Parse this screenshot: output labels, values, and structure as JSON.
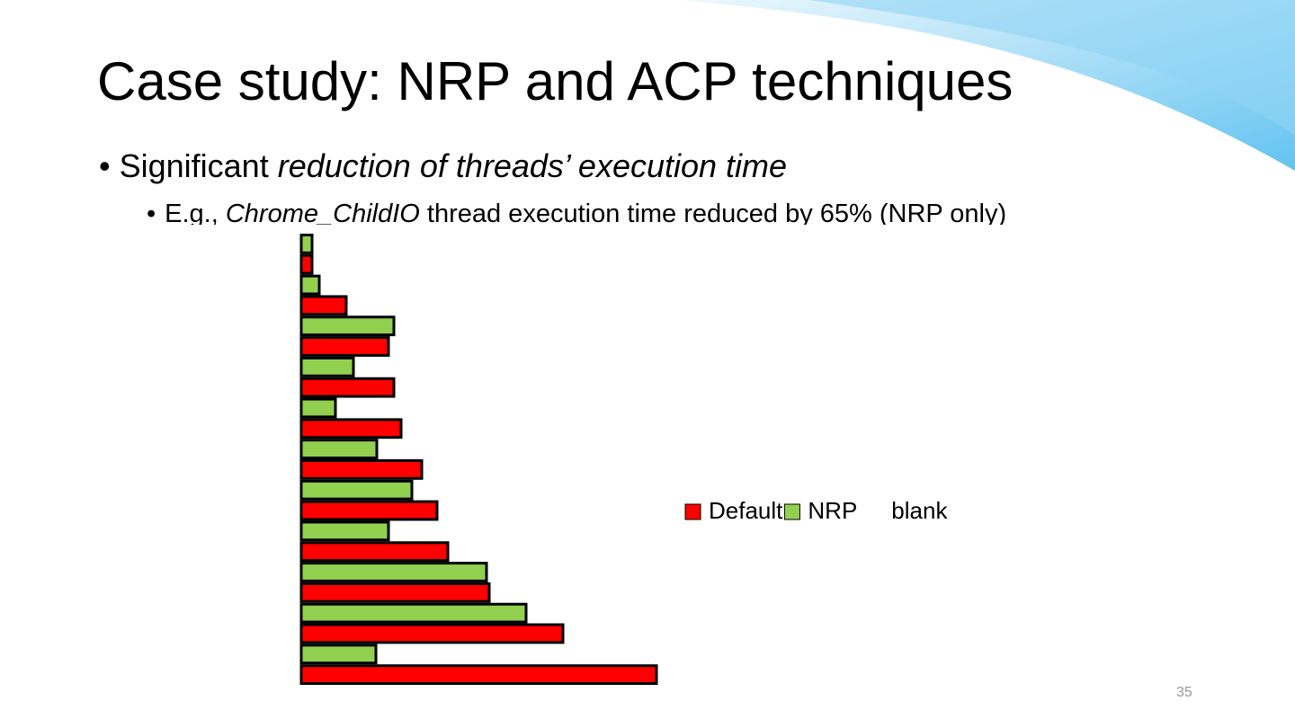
{
  "slide": {
    "title": "Case study: NRP and ACP techniques",
    "bullet1": [
      "Significant ",
      "reduction of threads’ execution time"
    ],
    "bullet2": [
      "E.g., ",
      "Chrome_ChildIO",
      " thread execution time reduced by 65% (NRP only)"
    ],
    "page_number": "35"
  },
  "chart_data": {
    "type": "hbar",
    "categories": [
      null,
      null,
      null,
      null,
      null,
      null,
      null,
      null,
      null,
      null,
      null
    ],
    "xlim": [
      0,
      400
    ],
    "series": [
      {
        "name": "Default",
        "color": "#ff0000",
        "values": [
          395,
          291,
          209,
          163,
          151,
          134,
          111,
          103,
          97,
          50,
          12
        ]
      },
      {
        "name": "NRP",
        "color": "#92d050",
        "values": [
          83,
          250,
          206,
          97,
          123,
          84,
          38,
          58,
          103,
          20,
          12
        ]
      },
      {
        "name": "blank",
        "color": "none",
        "values": [
          null,
          null,
          null,
          null,
          null,
          null,
          null,
          null,
          null,
          null,
          null
        ]
      }
    ]
  }
}
